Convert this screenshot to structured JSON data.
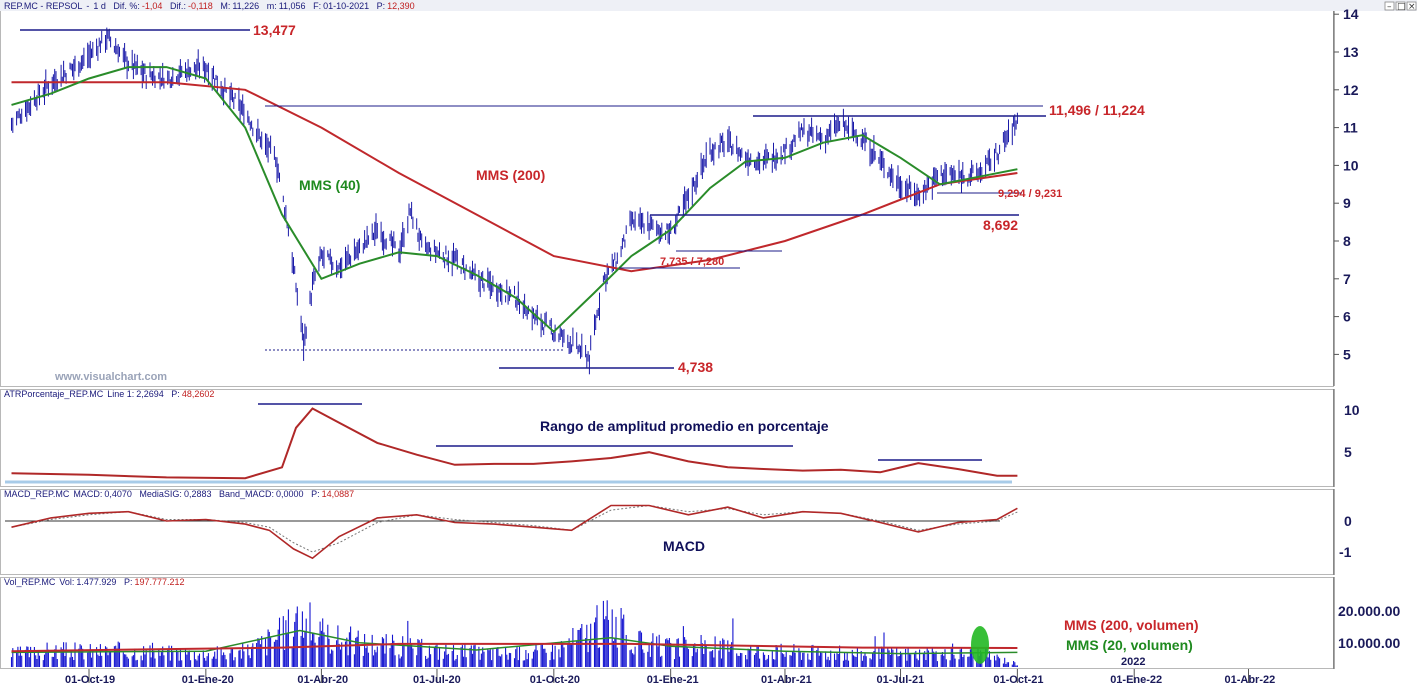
{
  "header": {
    "price_symbol": "REP.MC - REPSOL",
    "price_period": "1 d",
    "price_dif_pct_label": "Dif. %:",
    "price_dif_pct": "-1,04",
    "price_dif_label": "Dif.:",
    "price_dif": "-0,118",
    "price_max_label": "M:",
    "price_max": "11,226",
    "price_min_label": "m:",
    "price_min": "11,056",
    "price_date_label": "F:",
    "price_date": "01-10-2021",
    "price_p_label": "P:",
    "price_p": "12,390",
    "atr_label": "ATRPorcentaje_REP.MC",
    "atr_line_label": "Line 1:",
    "atr_line_value": "2,2694",
    "atr_p_label": "P:",
    "atr_p_value": "48,2602",
    "macd_label": "MACD_REP.MC",
    "macd_name": "MACD:",
    "macd_value": "0,4070",
    "macd_sig_name": "MediaSIG:",
    "macd_sig_value": "0,2883",
    "macd_band_name": "Band_MACD:",
    "macd_band_value": "0,0000",
    "macd_p_label": "P:",
    "macd_p_value": "14,0887",
    "vol_label": "Vol_REP.MC",
    "vol_name": "Vol:",
    "vol_value": "1.477.929",
    "vol_p_label": "P:",
    "vol_p_value": "197.777.212"
  },
  "watermark": "www.visualchart.com",
  "annotations": {
    "high_label": "13,477",
    "resistance_label": "11,496 / 11,224",
    "support_mid_label": "9,294 / 9,231",
    "support_label": "8,692",
    "gap_label": "7,735 / 7,280",
    "low_label": "4,738",
    "mms40_label": "MMS (40)",
    "mms200_label": "MMS (200)",
    "atr_title": "Rango de amplitud promedio en porcentaje",
    "macd_title": "MACD",
    "vol_mms200_label": "MMS (200, volumen)",
    "vol_mms20_label": "MMS (20, volumen)"
  },
  "axes": {
    "price_ticks": [
      "14",
      "13",
      "12",
      "11",
      "10",
      "9",
      "8",
      "7",
      "6",
      "5"
    ],
    "atr_ticks": [
      "10",
      "5"
    ],
    "macd_ticks": [
      "0",
      "-1"
    ],
    "vol_ticks": [
      "20.000.00",
      "10.000.00"
    ],
    "date_ticks": [
      "01-Oct-19",
      "01-Ene-20",
      "01-Abr-20",
      "01-Jul-20",
      "01-Oct-20",
      "01-Ene-21",
      "01-Abr-21",
      "01-Jul-21",
      "01-Oct-21",
      "01-Ene-22",
      "01-Abr-22"
    ],
    "year_marker": "2022"
  },
  "colors": {
    "price_bars": "#1a1aa8",
    "mms40": "#2a8c2a",
    "mms200": "#c0282c",
    "annotation_lines": "#1c1c8a",
    "atr_line": "#b02828",
    "macd_line": "#b02828",
    "volume_bars": "#1414d0",
    "highlight": "#22b822"
  },
  "chart_data": [
    {
      "type": "line",
      "title": "REP.MC - REPSOL",
      "xlabel": "",
      "ylabel": "",
      "x_range": [
        "2019-08-01",
        "2022-06-01"
      ],
      "ylim": [
        4.2,
        14
      ],
      "series": [
        {
          "name": "REP.MC",
          "x": [
            "2019-08-01",
            "2019-08-15",
            "2019-09-01",
            "2019-09-15",
            "2019-10-01",
            "2019-10-15",
            "2019-11-01",
            "2019-11-15",
            "2019-12-01",
            "2019-12-15",
            "2020-01-02",
            "2020-01-15",
            "2020-02-01",
            "2020-02-15",
            "2020-02-25",
            "2020-03-05",
            "2020-03-12",
            "2020-03-18",
            "2020-03-25",
            "2020-04-01",
            "2020-04-15",
            "2020-05-01",
            "2020-05-15",
            "2020-06-01",
            "2020-06-10",
            "2020-06-20",
            "2020-07-01",
            "2020-07-15",
            "2020-08-01",
            "2020-08-15",
            "2020-09-01",
            "2020-09-15",
            "2020-10-01",
            "2020-10-15",
            "2020-10-29",
            "2020-11-09",
            "2020-11-20",
            "2020-12-01",
            "2020-12-15",
            "2021-01-01",
            "2021-01-15",
            "2021-02-01",
            "2021-02-15",
            "2021-03-01",
            "2021-03-15",
            "2021-04-01",
            "2021-04-15",
            "2021-05-01",
            "2021-05-15",
            "2021-06-01",
            "2021-06-15",
            "2021-07-01",
            "2021-07-15",
            "2021-08-01",
            "2021-08-15",
            "2021-09-01",
            "2021-09-15",
            "2021-10-01"
          ],
          "values": [
            11.1,
            11.6,
            12.2,
            12.5,
            12.9,
            13.4,
            12.7,
            12.4,
            12.3,
            12.5,
            12.6,
            12.0,
            11.4,
            10.6,
            10.2,
            8.5,
            6.8,
            5.3,
            6.8,
            7.6,
            7.3,
            7.8,
            8.3,
            7.7,
            8.8,
            7.8,
            7.7,
            7.5,
            7.0,
            6.8,
            6.5,
            6.0,
            5.6,
            5.3,
            4.9,
            7.0,
            7.5,
            8.5,
            8.4,
            8.2,
            9.2,
            10.4,
            10.6,
            10.2,
            10.1,
            10.4,
            10.9,
            10.7,
            11.1,
            10.7,
            10.1,
            9.5,
            9.2,
            9.8,
            9.7,
            9.8,
            10.3,
            11.2
          ]
        },
        {
          "name": "MMS (40)",
          "x": [
            "2019-08-01",
            "2019-09-01",
            "2019-10-01",
            "2019-11-01",
            "2019-12-01",
            "2020-01-01",
            "2020-02-01",
            "2020-03-01",
            "2020-04-01",
            "2020-05-01",
            "2020-06-01",
            "2020-07-01",
            "2020-08-01",
            "2020-09-01",
            "2020-10-01",
            "2020-11-01",
            "2020-12-01",
            "2021-01-01",
            "2021-02-01",
            "2021-03-01",
            "2021-04-01",
            "2021-05-01",
            "2021-06-01",
            "2021-07-01",
            "2021-08-01",
            "2021-09-01",
            "2021-10-01"
          ],
          "values": [
            11.6,
            11.9,
            12.3,
            12.6,
            12.6,
            12.3,
            11.0,
            8.7,
            7.0,
            7.4,
            7.7,
            7.6,
            7.1,
            6.5,
            5.6,
            6.6,
            7.6,
            8.3,
            9.4,
            10.1,
            10.2,
            10.6,
            10.8,
            10.2,
            9.5,
            9.7,
            9.9
          ]
        },
        {
          "name": "MMS (200)",
          "x": [
            "2019-08-01",
            "2019-10-01",
            "2019-12-01",
            "2020-02-01",
            "2020-04-01",
            "2020-06-01",
            "2020-08-01",
            "2020-10-01",
            "2020-12-01",
            "2021-02-01",
            "2021-04-01",
            "2021-06-01",
            "2021-08-01",
            "2021-10-01"
          ],
          "values": [
            12.2,
            12.2,
            12.2,
            12.0,
            11.0,
            9.8,
            8.7,
            7.6,
            7.2,
            7.5,
            8.0,
            8.7,
            9.5,
            9.8
          ]
        }
      ],
      "levels": [
        13.477,
        11.496,
        11.224,
        9.294,
        9.231,
        8.692,
        7.735,
        7.28,
        4.738
      ]
    },
    {
      "type": "line",
      "title": "ATRPorcentaje_REP.MC",
      "xlabel": "",
      "ylabel": "",
      "ylim": [
        0,
        11
      ],
      "series": [
        {
          "name": "Line 1",
          "x": [
            "2019-08-01",
            "2019-10-01",
            "2019-12-01",
            "2020-02-01",
            "2020-03-01",
            "2020-03-12",
            "2020-03-25",
            "2020-04-15",
            "2020-05-15",
            "2020-06-15",
            "2020-07-15",
            "2020-08-15",
            "2020-09-15",
            "2020-10-15",
            "2020-11-15",
            "2020-12-15",
            "2021-01-15",
            "2021-02-15",
            "2021-03-15",
            "2021-04-15",
            "2021-05-15",
            "2021-06-15",
            "2021-07-15",
            "2021-08-15",
            "2021-09-15",
            "2021-10-01"
          ],
          "values": [
            2.6,
            2.4,
            2.1,
            2.0,
            3.3,
            8.0,
            10.3,
            8.6,
            6.2,
            4.8,
            3.6,
            3.7,
            3.7,
            4.0,
            4.4,
            5.1,
            4.0,
            3.3,
            3.1,
            2.9,
            3.0,
            2.7,
            3.8,
            3.1,
            2.3,
            2.3
          ]
        }
      ]
    },
    {
      "type": "line",
      "title": "MACD_REP.MC",
      "xlabel": "",
      "ylabel": "",
      "ylim": [
        -1.5,
        0.8
      ],
      "series": [
        {
          "name": "MACD",
          "x": [
            "2019-08-01",
            "2019-09-01",
            "2019-10-01",
            "2019-11-01",
            "2019-12-01",
            "2020-01-01",
            "2020-02-01",
            "2020-02-20",
            "2020-03-10",
            "2020-03-25",
            "2020-04-15",
            "2020-05-15",
            "2020-06-15",
            "2020-07-15",
            "2020-08-15",
            "2020-09-15",
            "2020-10-15",
            "2020-11-15",
            "2020-12-15",
            "2021-01-15",
            "2021-02-15",
            "2021-03-15",
            "2021-04-15",
            "2021-05-15",
            "2021-06-15",
            "2021-07-15",
            "2021-08-15",
            "2021-09-15",
            "2021-10-01"
          ],
          "values": [
            -0.2,
            0.1,
            0.25,
            0.3,
            0.0,
            0.05,
            -0.1,
            -0.3,
            -0.9,
            -1.2,
            -0.5,
            0.1,
            0.2,
            -0.05,
            -0.1,
            -0.2,
            -0.3,
            0.5,
            0.5,
            0.2,
            0.45,
            0.1,
            0.3,
            0.25,
            -0.05,
            -0.35,
            -0.05,
            0.05,
            0.41
          ]
        },
        {
          "name": "MediaSIG",
          "x": [
            "2019-08-01",
            "2019-09-01",
            "2019-10-01",
            "2019-11-01",
            "2019-12-01",
            "2020-01-01",
            "2020-02-01",
            "2020-02-20",
            "2020-03-10",
            "2020-03-25",
            "2020-04-15",
            "2020-05-15",
            "2020-06-15",
            "2020-07-15",
            "2020-08-15",
            "2020-09-15",
            "2020-10-15",
            "2020-11-15",
            "2020-12-15",
            "2021-01-15",
            "2021-02-15",
            "2021-03-15",
            "2021-04-15",
            "2021-05-15",
            "2021-06-15",
            "2021-07-15",
            "2021-08-15",
            "2021-09-15",
            "2021-10-01"
          ],
          "values": [
            -0.2,
            0.05,
            0.2,
            0.3,
            0.05,
            0.05,
            -0.05,
            -0.2,
            -0.7,
            -1.0,
            -0.7,
            -0.05,
            0.2,
            0.05,
            -0.05,
            -0.15,
            -0.3,
            0.35,
            0.5,
            0.3,
            0.4,
            0.2,
            0.3,
            0.25,
            0.0,
            -0.3,
            -0.1,
            0.0,
            0.29
          ]
        }
      ]
    },
    {
      "type": "bar",
      "title": "Vol_REP.MC",
      "xlabel": "",
      "ylabel": "",
      "ylim": [
        0,
        30000000
      ],
      "series": [
        {
          "name": "Vol",
          "x": [
            "2019-08-01",
            "2019-09-01",
            "2019-10-01",
            "2019-11-01",
            "2019-12-01",
            "2020-01-01",
            "2020-02-01",
            "2020-03-01",
            "2020-03-15",
            "2020-04-01",
            "2020-05-01",
            "2020-06-01",
            "2020-07-01",
            "2020-08-01",
            "2020-09-01",
            "2020-10-01",
            "2020-11-01",
            "2020-11-15",
            "2020-12-01",
            "2021-01-01",
            "2021-02-01",
            "2021-03-01",
            "2021-04-01",
            "2021-05-01",
            "2021-06-01",
            "2021-07-01",
            "2021-08-01",
            "2021-09-01",
            "2021-10-01"
          ],
          "values": [
            6000000,
            8000000,
            7500000,
            8000000,
            7000000,
            6500000,
            7500000,
            16000000,
            25000000,
            15000000,
            12000000,
            10000000,
            8000000,
            7000000,
            6500000,
            8000000,
            18000000,
            24000000,
            12000000,
            9000000,
            10000000,
            8000000,
            7500000,
            7000000,
            6000000,
            6500000,
            6000000,
            7000000,
            1477929
          ]
        },
        {
          "name": "MMS (200, volumen)",
          "x": [
            "2019-08-01",
            "2020-03-01",
            "2020-06-01",
            "2020-12-01",
            "2021-06-01",
            "2021-10-01"
          ],
          "values": [
            6500000,
            8000000,
            9500000,
            9500000,
            8000000,
            7800000
          ]
        },
        {
          "name": "MMS (20, volumen)",
          "x": [
            "2019-08-01",
            "2020-01-01",
            "2020-03-15",
            "2020-05-01",
            "2020-08-01",
            "2020-11-15",
            "2021-01-01",
            "2021-04-01",
            "2021-07-01",
            "2021-10-01"
          ],
          "values": [
            6000000,
            6500000,
            15000000,
            10000000,
            7000000,
            12000000,
            8500000,
            6500000,
            5500000,
            6000000
          ]
        }
      ]
    }
  ]
}
